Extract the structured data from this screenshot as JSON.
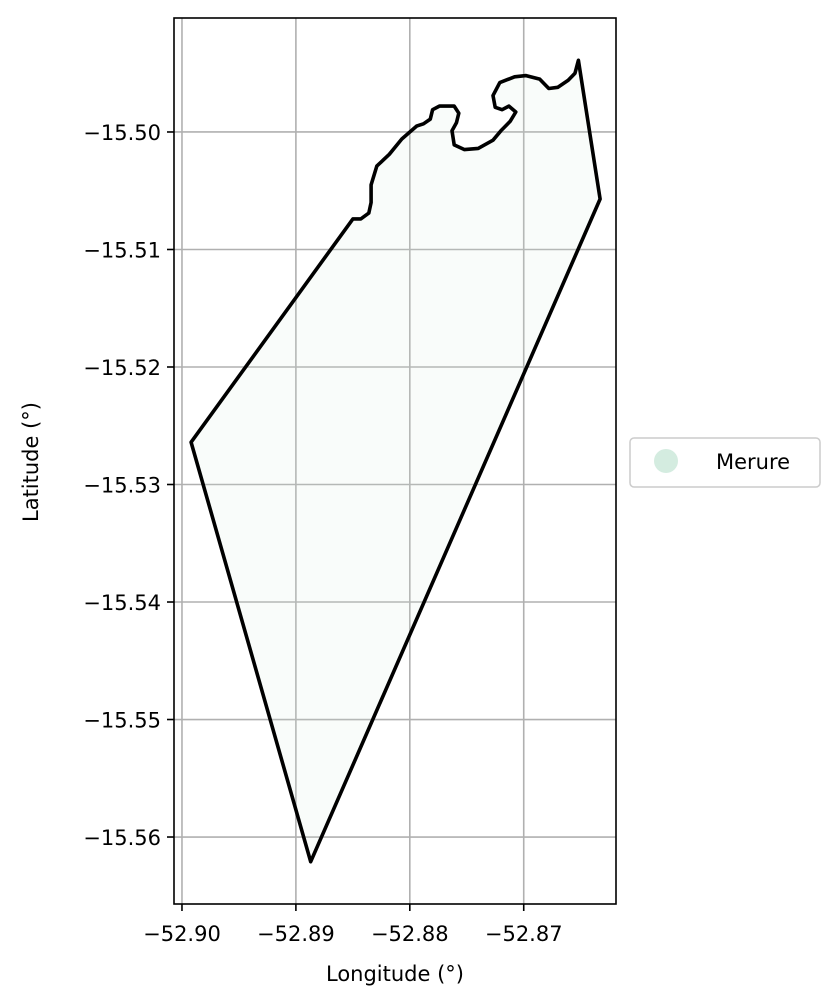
{
  "chart_data": {
    "type": "map",
    "title": "",
    "xlabel": "Longitude (°)",
    "ylabel": "Latitude (°)",
    "xlim": [
      -52.9007,
      -52.8619
    ],
    "ylim": [
      -15.5657,
      -15.4903
    ],
    "grid": true,
    "x_ticks": [
      {
        "value": -52.9,
        "label": "−52.90"
      },
      {
        "value": -52.89,
        "label": "−52.89"
      },
      {
        "value": -52.88,
        "label": "−52.88"
      },
      {
        "value": -52.87,
        "label": "−52.87"
      }
    ],
    "y_ticks": [
      {
        "value": -15.5,
        "label": "−15.50"
      },
      {
        "value": -15.51,
        "label": "−15.51"
      },
      {
        "value": -15.52,
        "label": "−15.52"
      },
      {
        "value": -15.53,
        "label": "−15.53"
      },
      {
        "value": -15.54,
        "label": "−15.54"
      },
      {
        "value": -15.55,
        "label": "−15.55"
      },
      {
        "value": -15.56,
        "label": "−15.56"
      }
    ],
    "legend": {
      "placement": "right",
      "entries": [
        {
          "label": "Merure",
          "color": "#d4ece0"
        }
      ]
    },
    "boundary": {
      "stroke": "#000000",
      "fill": "#d4ece0",
      "points": [
        [
          -52.8652,
          -15.4939
        ],
        [
          -52.8633,
          -15.5057
        ],
        [
          -52.8887,
          -15.5621
        ],
        [
          -52.8992,
          -15.5264
        ],
        [
          -52.885,
          -15.5074
        ],
        [
          -52.8843,
          -15.5074
        ],
        [
          -52.8836,
          -15.5069
        ],
        [
          -52.8834,
          -15.506
        ],
        [
          -52.8834,
          -15.5045
        ],
        [
          -52.8829,
          -15.5029
        ],
        [
          -52.8818,
          -15.5019
        ],
        [
          -52.8807,
          -15.5006
        ],
        [
          -52.8794,
          -15.4995
        ],
        [
          -52.8788,
          -15.4993
        ],
        [
          -52.8782,
          -15.4989
        ],
        [
          -52.878,
          -15.4981
        ],
        [
          -52.8774,
          -15.4978
        ],
        [
          -52.8761,
          -15.4978
        ],
        [
          -52.8757,
          -15.4984
        ],
        [
          -52.8759,
          -15.4992
        ],
        [
          -52.8763,
          -15.4999
        ],
        [
          -52.8761,
          -15.5011
        ],
        [
          -52.8752,
          -15.5015
        ],
        [
          -52.874,
          -15.5014
        ],
        [
          -52.8727,
          -15.5007
        ],
        [
          -52.872,
          -15.4999
        ],
        [
          -52.8712,
          -15.4991
        ],
        [
          -52.8707,
          -15.4983
        ],
        [
          -52.8713,
          -15.4978
        ],
        [
          -52.8719,
          -15.4981
        ],
        [
          -52.8725,
          -15.4979
        ],
        [
          -52.8727,
          -15.4969
        ],
        [
          -52.8721,
          -15.4958
        ],
        [
          -52.8708,
          -15.4953
        ],
        [
          -52.8698,
          -15.4952
        ],
        [
          -52.8686,
          -15.4955
        ],
        [
          -52.8678,
          -15.4963
        ],
        [
          -52.867,
          -15.4962
        ],
        [
          -52.8661,
          -15.4956
        ],
        [
          -52.8655,
          -15.495
        ]
      ]
    }
  }
}
